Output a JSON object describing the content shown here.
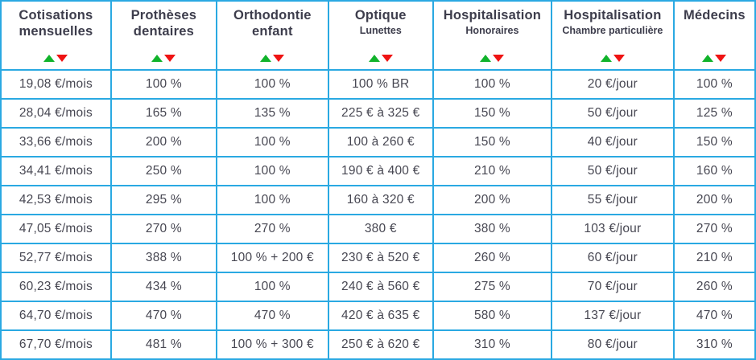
{
  "colors": {
    "border": "#2AA9E2",
    "header_text": "#3D3D4C",
    "cell_text": "#474752",
    "sort_up_green": "#11B32B",
    "sort_down_red": "#EF1313",
    "background": "#FFFFFF"
  },
  "table": {
    "columns": [
      {
        "title": "Cotisations mensuelles",
        "subtitle": ""
      },
      {
        "title": "Prothèses dentaires",
        "subtitle": ""
      },
      {
        "title": "Orthodontie enfant",
        "subtitle": ""
      },
      {
        "title": "Optique",
        "subtitle": "Lunettes"
      },
      {
        "title": "Hospitalisation",
        "subtitle": "Honoraires"
      },
      {
        "title": "Hospitalisation",
        "subtitle": "Chambre particulière"
      },
      {
        "title": "Médecins",
        "subtitle": ""
      }
    ],
    "rows": [
      [
        "19,08 €/mois",
        "100 %",
        "100 %",
        "100 % BR",
        "100 %",
        "20 €/jour",
        "100 %"
      ],
      [
        "28,04 €/mois",
        "165 %",
        "135 %",
        "225 € à 325 €",
        "150 %",
        "50 €/jour",
        "125 %"
      ],
      [
        "33,66 €/mois",
        "200 %",
        "100 %",
        "100 à 260 €",
        "150 %",
        "40 €/jour",
        "150 %"
      ],
      [
        "34,41 €/mois",
        "250 %",
        "100 %",
        "190 € à 400 €",
        "210 %",
        "50 €/jour",
        "160 %"
      ],
      [
        "42,53 €/mois",
        "295 %",
        "100 %",
        "160 à 320 €",
        "200 %",
        "55 €/jour",
        "200 %"
      ],
      [
        "47,05 €/mois",
        "270 %",
        "270 %",
        "380 €",
        "380 %",
        "103 €/jour",
        "270 %"
      ],
      [
        "52,77 €/mois",
        "388 %",
        "100 % + 200 €",
        "230 € à 520 €",
        "260 %",
        "60 €/jour",
        "210 %"
      ],
      [
        "60,23 €/mois",
        "434 %",
        "100 %",
        "240 € à 560 €",
        "275 %",
        "70 €/jour",
        "260 %"
      ],
      [
        "64,70 €/mois",
        "470 %",
        "470 %",
        "420 € à 635 €",
        "580 %",
        "137 €/jour",
        "470 %"
      ],
      [
        "67,70 €/mois",
        "481 %",
        "100 % + 300 €",
        "250 € à 620 €",
        "310 %",
        "80 €/jour",
        "310 %"
      ]
    ]
  }
}
